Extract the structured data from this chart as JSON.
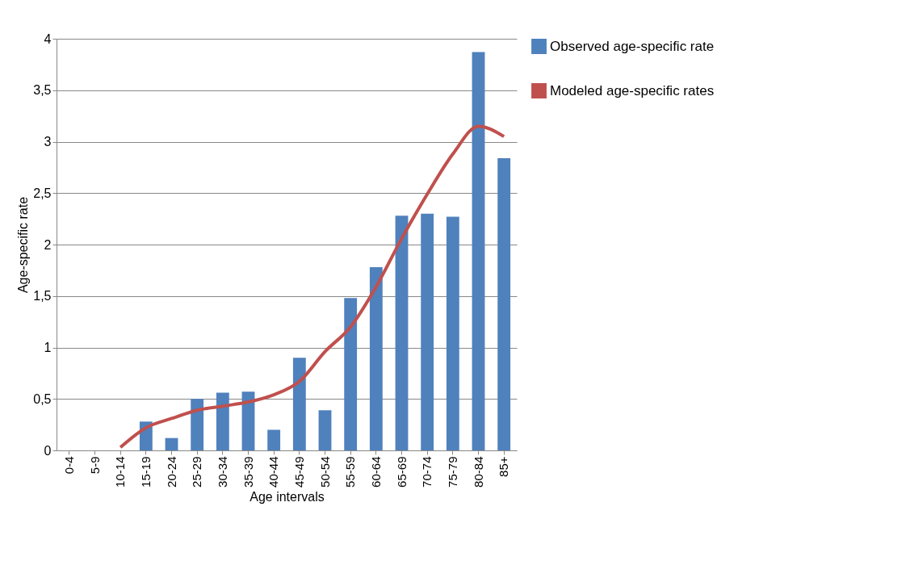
{
  "chart_data": {
    "type": "bar",
    "xlabel": "Age intervals",
    "ylabel": "Age-specific rate",
    "categories": [
      "0-4",
      "5-9",
      "10-14",
      "15-19",
      "20-24",
      "25-29",
      "30-34",
      "35-39",
      "40-44",
      "45-49",
      "50-54",
      "55-59",
      "60-64",
      "65-69",
      "70-74",
      "75-79",
      "80-84",
      "85+"
    ],
    "series": [
      {
        "name": "Observed age-specific rate",
        "color": "#4f81bd",
        "values": [
          0,
          0,
          0,
          0.28,
          0.12,
          0.5,
          0.56,
          0.57,
          0.2,
          0.9,
          0.39,
          1.48,
          1.78,
          2.28,
          2.3,
          2.27,
          3.87,
          2.84
        ]
      },
      {
        "name": "Modeled age-specific rates",
        "type": "line",
        "color": "#c0504d",
        "values": [
          null,
          null,
          0.03,
          0.22,
          0.31,
          0.39,
          0.43,
          0.47,
          0.54,
          0.67,
          0.96,
          1.2,
          1.59,
          2.06,
          2.49,
          2.88,
          3.15,
          3.05
        ]
      }
    ],
    "ylim": [
      0,
      4
    ],
    "yticks": [
      0,
      {
        "value": 0.5,
        "label": "0,5"
      },
      1,
      {
        "value": 1.5,
        "label": "1,5"
      },
      2,
      {
        "value": 2.5,
        "label": "2,5"
      },
      3,
      {
        "value": 3.5,
        "label": "3,5"
      },
      4
    ],
    "grid": "y",
    "legend": "right"
  }
}
